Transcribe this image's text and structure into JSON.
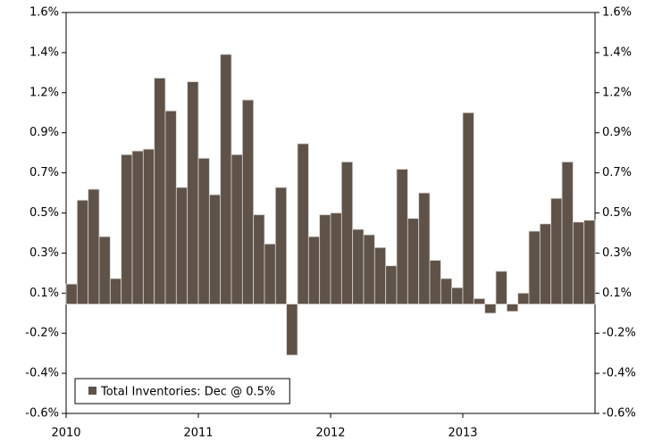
{
  "chart_data": {
    "type": "bar",
    "categories": [
      "2010",
      null,
      null,
      null,
      null,
      null,
      null,
      null,
      null,
      null,
      null,
      null,
      "2011",
      null,
      null,
      null,
      null,
      null,
      null,
      null,
      null,
      null,
      null,
      null,
      "2012",
      null,
      null,
      null,
      null,
      null,
      null,
      null,
      null,
      null,
      null,
      null,
      "2013",
      null,
      null,
      null,
      null,
      null,
      null,
      null,
      null,
      null,
      null,
      null
    ],
    "series": [
      {
        "name": "Total Inventories: Dec @ 0.5%",
        "color": "#5e5249",
        "values": [
          0.11,
          0.57,
          0.63,
          0.37,
          0.14,
          0.82,
          0.84,
          0.85,
          1.24,
          1.06,
          0.64,
          1.22,
          0.8,
          0.6,
          1.37,
          0.82,
          1.12,
          0.49,
          0.33,
          0.64,
          -0.28,
          0.88,
          0.37,
          0.49,
          0.5,
          0.78,
          0.41,
          0.38,
          0.31,
          0.21,
          0.74,
          0.47,
          0.61,
          0.24,
          0.14,
          0.09,
          1.05,
          0.03,
          -0.05,
          0.18,
          -0.04,
          0.06,
          0.4,
          0.44,
          0.58,
          0.78,
          0.45,
          0.46
        ]
      }
    ],
    "ylim": [
      -0.6,
      1.6
    ],
    "yticks": [
      {
        "value": -0.6,
        "label": "-0.6%"
      },
      {
        "value": -0.38,
        "label": "-0.4%"
      },
      {
        "value": -0.16,
        "label": "-0.2%"
      },
      {
        "value": 0.06,
        "label": "0.1%"
      },
      {
        "value": 0.28,
        "label": "0.3%"
      },
      {
        "value": 0.5,
        "label": "0.5%"
      },
      {
        "value": 0.72,
        "label": "0.7%"
      },
      {
        "value": 0.94,
        "label": "0.9%"
      },
      {
        "value": 1.16,
        "label": "1.2%"
      },
      {
        "value": 1.38,
        "label": "1.4%"
      },
      {
        "value": 1.6,
        "label": "1.6%"
      }
    ],
    "legend": "lower left"
  }
}
